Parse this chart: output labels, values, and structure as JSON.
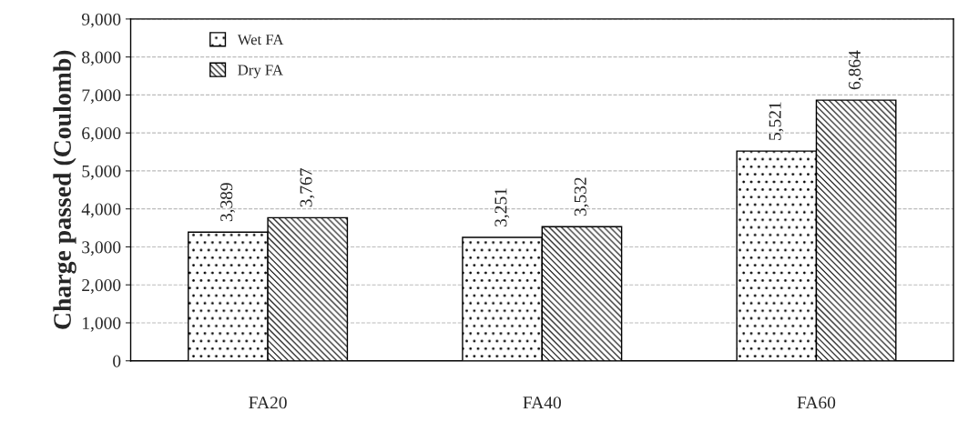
{
  "chart_data": {
    "type": "bar",
    "ylabel": "Charge passed (Coulomb)",
    "categories": [
      "FA20",
      "FA40",
      "FA60"
    ],
    "series": [
      {
        "name": "Wet FA",
        "color": "#000000",
        "values": [
          3389,
          3251,
          5521
        ]
      },
      {
        "name": "Dry FA",
        "color": "#000000",
        "values": [
          3767,
          3532,
          6864
        ]
      }
    ],
    "ylim": [
      0,
      9000
    ],
    "yticks": [
      {
        "value": 0,
        "label": "0"
      },
      {
        "value": 1000,
        "label": "1,000"
      },
      {
        "value": 2000,
        "label": "2,000"
      },
      {
        "value": 3000,
        "label": "3,000"
      },
      {
        "value": 4000,
        "label": "4,000"
      },
      {
        "value": 5000,
        "label": "5,000"
      },
      {
        "value": 6000,
        "label": "6,000"
      },
      {
        "value": 7000,
        "label": "7,000"
      },
      {
        "value": 8000,
        "label": "8,000"
      },
      {
        "value": 9000,
        "label": "9,000"
      }
    ],
    "value_labels": [
      [
        "3,389",
        "3,251",
        "5,521"
      ],
      [
        "3,767",
        "3,532",
        "6,864"
      ]
    ],
    "grid": "y",
    "legend": "top left"
  }
}
